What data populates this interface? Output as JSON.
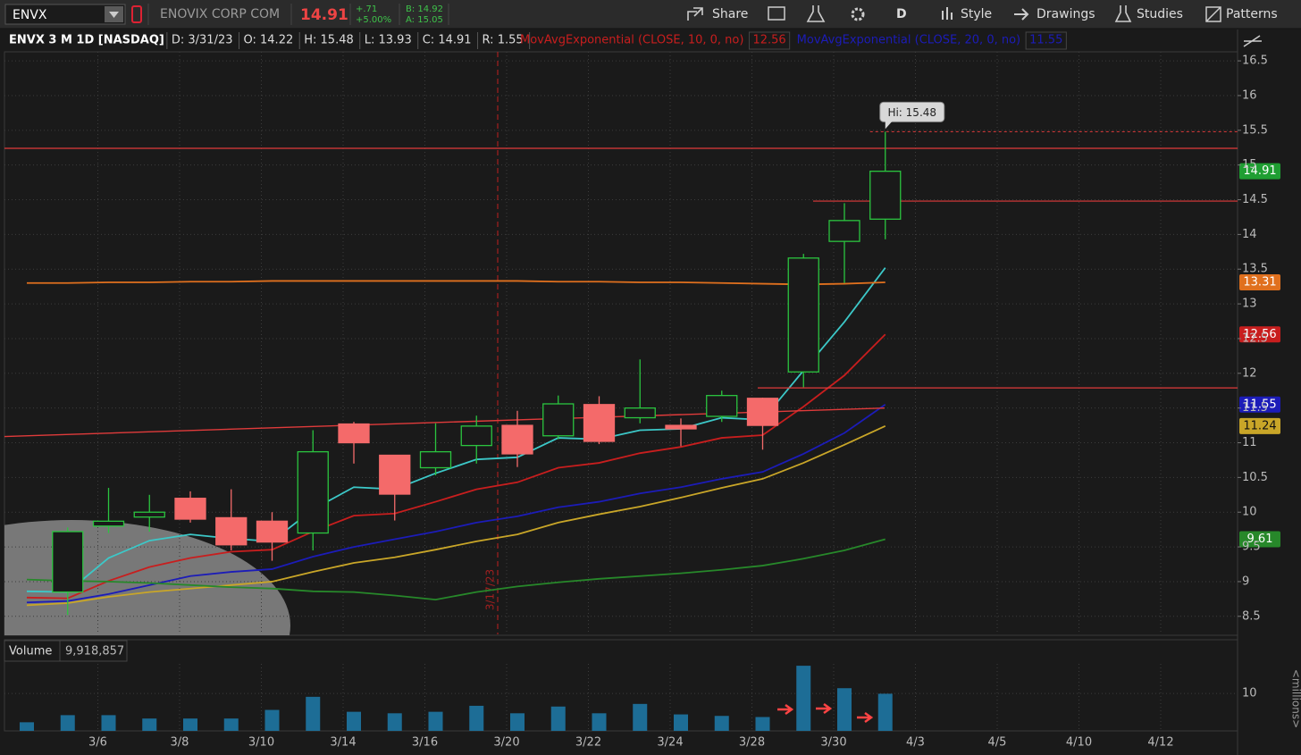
{
  "toolbar": {
    "symbol": "ENVX",
    "description": "ENOVIX CORP COM",
    "last": "14.91",
    "change": "+.71",
    "change_pct": "+5.00%",
    "bid": "B: 14.92",
    "ask": "A: 15.05",
    "buttons": [
      "Share",
      "D",
      "Style",
      "Drawings",
      "Studies",
      "Patterns"
    ]
  },
  "header": {
    "title": "ENVX 3 M 1D [NASDAQ]",
    "fields": [
      "D: 3/31/23",
      "O: 14.22",
      "H: 15.48",
      "L: 13.93",
      "C: 14.91",
      "R: 1.55"
    ]
  },
  "chart_data": [
    {
      "type": "candlestick",
      "open": [
        null,
        8.85,
        9.8,
        9.93,
        10.2,
        9.92,
        9.87,
        9.7,
        11.27,
        10.82,
        10.64,
        10.96,
        11.25,
        11.1,
        11.55,
        11.36,
        11.25,
        11.38,
        11.64,
        12.02,
        13.9,
        14.22,
        null,
        null,
        null,
        null,
        null,
        null,
        null,
        null
      ],
      "high": [
        null,
        9.78,
        10.35,
        10.25,
        10.3,
        10.33,
        10.0,
        11.18,
        11.3,
        10.82,
        11.28,
        11.39,
        11.46,
        11.68,
        11.67,
        12.2,
        11.35,
        11.75,
        11.65,
        13.72,
        14.45,
        15.48,
        null,
        null,
        null,
        null,
        null,
        null,
        null,
        null
      ],
      "low": [
        null,
        8.52,
        9.7,
        9.72,
        9.85,
        9.45,
        9.3,
        9.45,
        10.7,
        9.88,
        10.53,
        10.7,
        10.65,
        11.05,
        10.98,
        11.28,
        10.95,
        11.3,
        10.9,
        11.8,
        13.3,
        13.93,
        null,
        null,
        null,
        null,
        null,
        null,
        null,
        null
      ],
      "close": [
        null,
        9.72,
        9.87,
        10.0,
        9.9,
        9.53,
        9.57,
        10.87,
        11.0,
        10.26,
        10.87,
        11.24,
        10.84,
        11.56,
        11.02,
        11.5,
        11.2,
        11.68,
        11.25,
        13.66,
        14.2,
        14.91,
        null,
        null,
        null,
        null,
        null,
        null,
        null,
        null
      ],
      "up_color": "#2bc43f",
      "down_color": "#f46a6a",
      "last_label": true,
      "series": [
        {
          "color": "#3cc8c8",
          "values": [
            8.86,
            8.85,
            9.34,
            9.59,
            9.68,
            9.62,
            9.58,
            10.04,
            10.36,
            10.33,
            10.56,
            10.76,
            10.79,
            11.07,
            11.05,
            11.18,
            11.2,
            11.36,
            11.33,
            12.04,
            12.74,
            13.52,
            null,
            null,
            null,
            null,
            null,
            null,
            null,
            null
          ]
        },
        {
          "name": "MovAvgExponential (CLOSE, 10, 0, no)",
          "color": "#c81e1e",
          "last_label": true,
          "values": [
            8.77,
            8.76,
            9.01,
            9.21,
            9.34,
            9.43,
            9.46,
            9.72,
            9.95,
            9.98,
            10.15,
            10.33,
            10.43,
            10.64,
            10.71,
            10.85,
            10.94,
            11.07,
            11.11,
            11.52,
            11.97,
            12.56,
            null,
            null,
            null,
            null,
            null,
            null,
            null,
            null
          ]
        },
        {
          "name": "MovAvgExponential (CLOSE, 20, 0, no)",
          "color": "#1c1cb8",
          "last_label": true,
          "values": [
            8.7,
            8.72,
            8.82,
            8.95,
            9.08,
            9.14,
            9.18,
            9.36,
            9.5,
            9.61,
            9.72,
            9.85,
            9.94,
            10.07,
            10.15,
            10.27,
            10.36,
            10.48,
            10.58,
            10.84,
            11.14,
            11.55,
            null,
            null,
            null,
            null,
            null,
            null,
            null,
            null
          ]
        },
        {
          "color": "#c9a628",
          "last_label": true,
          "values": [
            8.66,
            8.69,
            8.78,
            8.85,
            8.9,
            8.95,
            9.0,
            9.14,
            9.27,
            9.35,
            9.46,
            9.58,
            9.68,
            9.85,
            9.97,
            10.08,
            10.21,
            10.35,
            10.48,
            10.71,
            10.97,
            11.24,
            null,
            null,
            null,
            null,
            null,
            null,
            null,
            null
          ]
        },
        {
          "color": "#27882a",
          "last_label": true,
          "values": [
            9.03,
            9.01,
            9.0,
            8.98,
            8.95,
            8.92,
            8.9,
            8.86,
            8.85,
            8.8,
            8.74,
            8.85,
            8.93,
            8.99,
            9.04,
            9.08,
            9.12,
            9.17,
            9.23,
            9.33,
            9.45,
            9.61,
            null,
            null,
            null,
            null,
            null,
            null,
            null,
            null
          ]
        },
        {
          "color": "#e0701e",
          "last_label": true,
          "values": [
            13.3,
            13.3,
            13.31,
            13.31,
            13.32,
            13.32,
            13.33,
            13.33,
            13.33,
            13.33,
            13.33,
            13.33,
            13.33,
            13.32,
            13.32,
            13.31,
            13.31,
            13.3,
            13.29,
            13.28,
            13.29,
            13.31,
            null,
            null,
            null,
            null,
            null,
            null,
            null,
            null
          ]
        }
      ],
      "ylim": [
        8.24,
        16.63
      ],
      "yticks": [
        8.5,
        9,
        9.5,
        10,
        10.5,
        11,
        11.5,
        12,
        12.5,
        13,
        13.5,
        14,
        14.5,
        15,
        15.5,
        16,
        16.5
      ],
      "grid": true,
      "levels": [
        15.24,
        14.48,
        11.79
      ],
      "level_color": "#e03b3b",
      "trendline": [
        11.09,
        11.5
      ],
      "annotations": {
        "hi": "Hi: 15.48",
        "date_marker": "3/17/23"
      }
    },
    {
      "type": "bar",
      "title": "Volume",
      "last_label": "9,918,857",
      "y_axis_label": "<millions>",
      "categories": [
        null,
        null,
        "3/6",
        null,
        "3/8",
        null,
        "3/10",
        null,
        "3/14",
        null,
        "3/16",
        null,
        "3/20",
        null,
        "3/22",
        null,
        "3/24",
        null,
        "3/28",
        null,
        "3/30",
        null,
        "4/3",
        null,
        "4/5",
        null,
        "4/10",
        null,
        "4/12",
        null
      ],
      "values": [
        2.3,
        4.2,
        4.2,
        3.3,
        3.3,
        3.3,
        5.6,
        9.1,
        5.1,
        4.7,
        5.1,
        6.7,
        4.7,
        6.5,
        4.7,
        7.2,
        4.4,
        4.0,
        3.7,
        17.4,
        11.4,
        9.92,
        null,
        null,
        null,
        null,
        null,
        null,
        null,
        null
      ],
      "color": "#1d6d96",
      "ylim": [
        0,
        17.9
      ],
      "yticks": [
        10
      ],
      "grid": true
    }
  ]
}
